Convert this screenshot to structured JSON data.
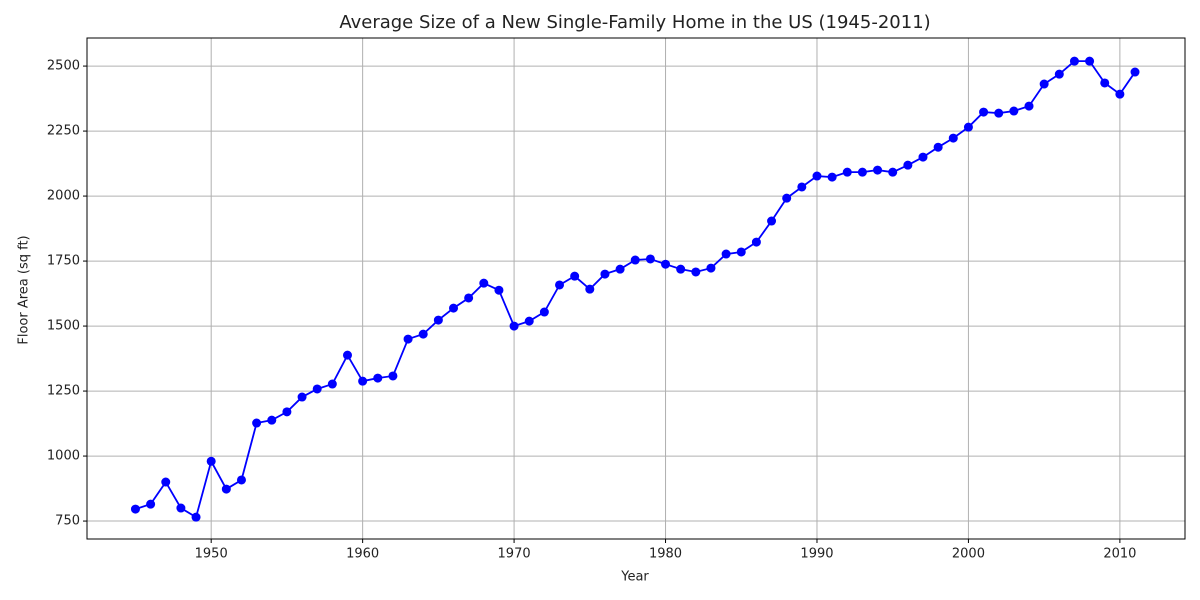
{
  "chart_data": {
    "type": "line",
    "title": "Average Size of a New Single-Family Home in the US (1945-2011)",
    "x_label": "Year",
    "y_label": "Floor Area (sq ft)",
    "x": [
      1945,
      1946,
      1947,
      1948,
      1949,
      1950,
      1951,
      1952,
      1953,
      1954,
      1955,
      1956,
      1957,
      1958,
      1959,
      1960,
      1961,
      1962,
      1963,
      1964,
      1965,
      1966,
      1967,
      1968,
      1969,
      1970,
      1971,
      1972,
      1973,
      1974,
      1975,
      1976,
      1977,
      1978,
      1979,
      1980,
      1981,
      1982,
      1983,
      1984,
      1985,
      1986,
      1987,
      1988,
      1989,
      1990,
      1991,
      1992,
      1993,
      1994,
      1995,
      1996,
      1997,
      1998,
      1999,
      2000,
      2001,
      2002,
      2003,
      2004,
      2005,
      2006,
      2007,
      2008,
      2009,
      2010,
      2011
    ],
    "values": [
      796,
      815,
      900,
      800,
      765,
      980,
      873,
      908,
      1127,
      1138,
      1170,
      1227,
      1258,
      1277,
      1388,
      1288,
      1300,
      1308,
      1450,
      1469,
      1523,
      1569,
      1608,
      1665,
      1638,
      1500,
      1519,
      1554,
      1658,
      1692,
      1642,
      1700,
      1719,
      1754,
      1758,
      1738,
      1719,
      1708,
      1723,
      1777,
      1785,
      1823,
      1904,
      1992,
      2035,
      2077,
      2073,
      2092,
      2092,
      2100,
      2092,
      2119,
      2150,
      2188,
      2223,
      2265,
      2323,
      2319,
      2327,
      2346,
      2431,
      2469,
      2519,
      2519,
      2435,
      2392,
      2477
    ],
    "color": "#0000ff",
    "xlim": [
      1941.8,
      2014.3
    ],
    "xticks": [
      1950,
      1960,
      1970,
      1980,
      1990,
      2000,
      2010
    ],
    "ylim": [
      681,
      2608
    ],
    "yticks": [
      750,
      1000,
      1250,
      1500,
      1750,
      2000,
      2250,
      2500
    ],
    "grid": true
  }
}
